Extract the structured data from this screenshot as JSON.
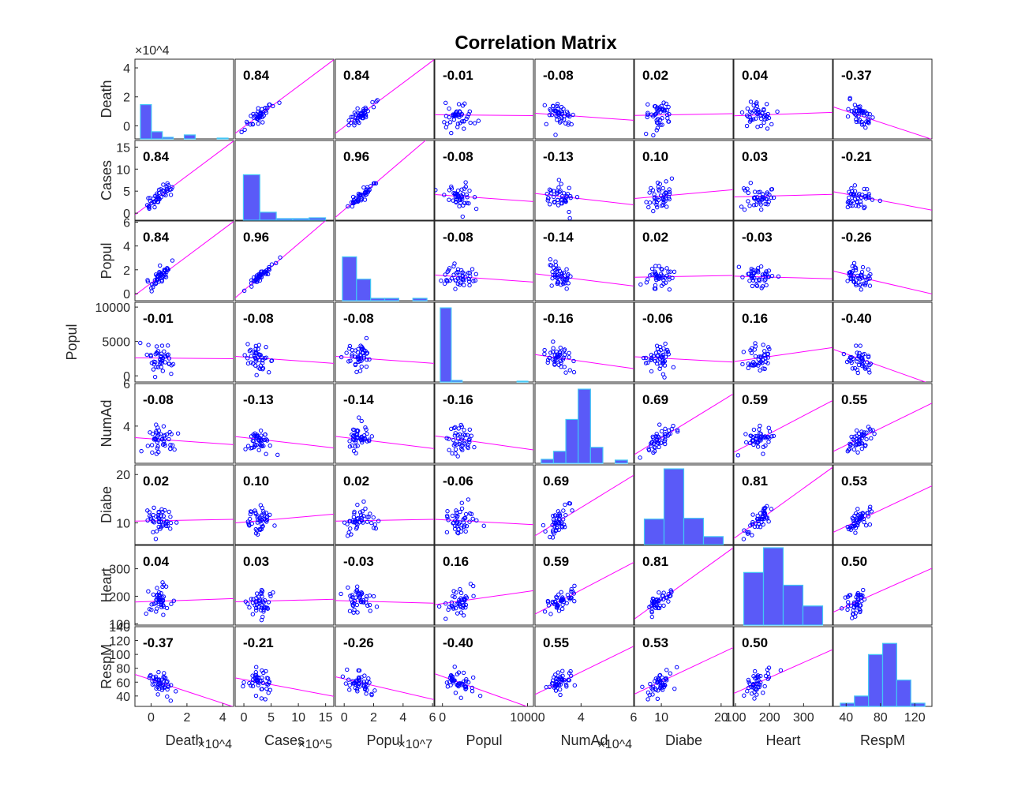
{
  "chart_data": {
    "type": "scatter",
    "title": "Correlation Matrix",
    "variables": [
      "Death",
      "Cases",
      "Popul",
      "Popul",
      "NumAd",
      "Diabe",
      "Heart",
      "RespM"
    ],
    "y_labels": [
      "Death",
      "Cases",
      "Popul",
      "Popul",
      "NumAd",
      "Diabe",
      "Heart",
      "RespM"
    ],
    "x_labels": [
      "Death",
      "Cases",
      "Popul",
      "Popul",
      "NumAd",
      "Diabe",
      "Heart",
      "RespM"
    ],
    "x_exponents": [
      "×10^4",
      "×10^5",
      "×10^7",
      "",
      "×10^4",
      "",
      "",
      ""
    ],
    "y_exponents": [
      "×10^4",
      "",
      "",
      "",
      "",
      "",
      "",
      ""
    ],
    "correlations": [
      [
        null,
        0.84,
        0.84,
        -0.01,
        -0.08,
        0.02,
        0.04,
        -0.37
      ],
      [
        0.84,
        null,
        0.96,
        -0.08,
        -0.13,
        0.1,
        0.03,
        -0.21
      ],
      [
        0.84,
        0.96,
        null,
        -0.08,
        -0.14,
        0.02,
        -0.03,
        -0.26
      ],
      [
        -0.01,
        -0.08,
        -0.08,
        null,
        -0.16,
        -0.06,
        0.16,
        -0.4
      ],
      [
        -0.08,
        -0.13,
        -0.14,
        -0.16,
        null,
        0.69,
        0.59,
        0.55
      ],
      [
        0.02,
        0.1,
        0.02,
        -0.06,
        0.69,
        null,
        0.81,
        0.53
      ],
      [
        0.04,
        0.03,
        -0.03,
        0.16,
        0.59,
        0.81,
        null,
        0.5
      ],
      [
        -0.37,
        -0.21,
        -0.26,
        -0.4,
        0.55,
        0.53,
        0.5,
        null
      ]
    ],
    "coef_labels": [
      [
        "",
        "0.84",
        "0.84",
        "-0.01",
        "-0.08",
        "0.02",
        "0.04",
        "-0.37"
      ],
      [
        "0.84",
        "",
        "0.96",
        "-0.08",
        "-0.13",
        "0.10",
        "0.03",
        "-0.21"
      ],
      [
        "0.84",
        "0.96",
        "",
        "-0.08",
        "-0.14",
        "0.02",
        "-0.03",
        "-0.26"
      ],
      [
        "-0.01",
        "-0.08",
        "-0.08",
        "",
        "-0.16",
        "-0.06",
        "0.16",
        "-0.40"
      ],
      [
        "-0.08",
        "-0.13",
        "-0.14",
        "-0.16",
        "",
        "0.69",
        "0.59",
        "0.55"
      ],
      [
        "0.02",
        "0.10",
        "0.02",
        "-0.06",
        "0.69",
        "",
        "0.81",
        "0.53"
      ],
      [
        "0.04",
        "0.03",
        "-0.03",
        "0.16",
        "0.59",
        "0.81",
        "",
        "0.50"
      ],
      [
        "-0.37",
        "-0.21",
        "-0.26",
        "-0.40",
        "0.55",
        "0.53",
        "0.50",
        ""
      ]
    ],
    "ranges": [
      [
        -0.9,
        4.6
      ],
      [
        -1.6,
        16.5
      ],
      [
        -0.6,
        6.1
      ],
      [
        -900,
        10700
      ],
      [
        2.25,
        6.0
      ],
      [
        5.5,
        22.0
      ],
      [
        95,
        385
      ],
      [
        25,
        140
      ]
    ],
    "x_ticks": [
      [
        "0",
        "2",
        "4"
      ],
      [
        "0",
        "5",
        "10",
        "15"
      ],
      [
        "0",
        "2",
        "4",
        "6"
      ],
      [
        "0",
        "10000"
      ],
      [
        "4",
        "6"
      ],
      [
        "10",
        "20"
      ],
      [
        "100",
        "200",
        "300"
      ],
      [
        "40",
        "60",
        "80",
        "100",
        "120"
      ]
    ],
    "x_tick_values": [
      [
        0,
        2,
        4
      ],
      [
        0,
        5,
        10,
        15
      ],
      [
        0,
        2,
        4,
        6
      ],
      [
        0,
        10000
      ],
      [
        4,
        6
      ],
      [
        10,
        20
      ],
      [
        100,
        200,
        300
      ],
      [
        40,
        80,
        120
      ]
    ],
    "y_ticks": [
      [
        "0",
        "2",
        "4"
      ],
      [
        "0",
        "5",
        "10",
        "15"
      ],
      [
        "0",
        "2",
        "4",
        "6"
      ],
      [
        "0",
        "5000",
        "10000"
      ],
      [
        "4",
        "6"
      ],
      [
        "10",
        "20"
      ],
      [
        "100",
        "200",
        "300"
      ],
      [
        "40",
        "60",
        "80",
        "100",
        "120",
        "140"
      ]
    ],
    "y_tick_values": [
      [
        0,
        2,
        4
      ],
      [
        0,
        5,
        10,
        15
      ],
      [
        0,
        2,
        4,
        6
      ],
      [
        0,
        5000,
        10000
      ],
      [
        4,
        6
      ],
      [
        10,
        20
      ],
      [
        100,
        200,
        300
      ],
      [
        40,
        60,
        80,
        100,
        120,
        140
      ]
    ],
    "x_tick_labels_shown": [
      [
        "0",
        "2",
        "4"
      ],
      [
        "0",
        "5",
        "10",
        "15"
      ],
      [
        "0",
        "2",
        "4",
        "6"
      ],
      [
        "0",
        "10000"
      ],
      [
        "4",
        "6"
      ],
      [
        "10",
        "20"
      ],
      [
        "100",
        "200",
        "300"
      ],
      [
        "40",
        "80",
        "120"
      ]
    ],
    "histograms": [
      [
        0.43,
        0.09,
        0.02,
        0.0,
        0.05,
        0.0,
        0.0,
        0.01
      ],
      [
        0.57,
        0.1,
        0.02,
        0.02,
        0.03
      ],
      [
        0.55,
        0.27,
        0.03,
        0.03,
        0.0,
        0.03
      ],
      [
        0.93,
        0.02,
        0.0,
        0.0,
        0.0,
        0.0,
        0.0,
        0.01
      ],
      [
        0.05,
        0.15,
        0.55,
        0.93,
        0.2,
        0.0,
        0.04
      ],
      [
        0.32,
        0.95,
        0.33,
        0.1
      ],
      [
        0.66,
        0.97,
        0.5,
        0.24
      ],
      [
        0.04,
        0.13,
        0.65,
        0.79,
        0.33,
        0.04
      ]
    ],
    "series_color": "#0000ff",
    "fit_line_color": "#ff00ff",
    "hist_fill": "#5a5af8",
    "hist_edge": "#42c6f5",
    "grid": false
  }
}
